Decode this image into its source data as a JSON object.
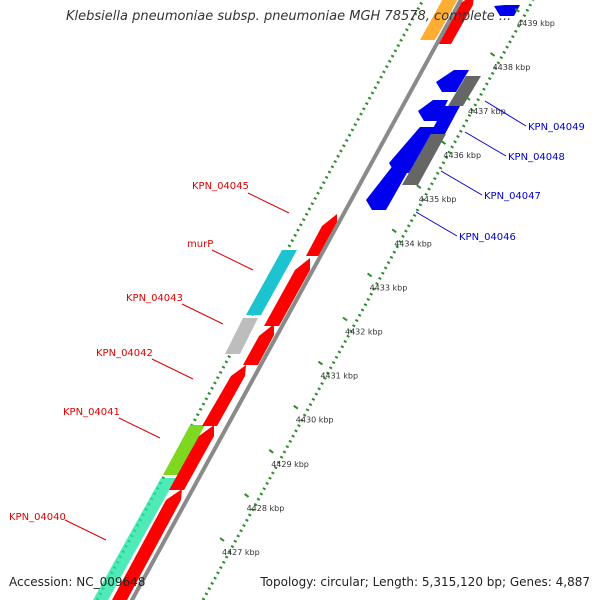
{
  "title": "Klebsiella pneumoniae subsp. pneumoniae MGH 78578, complete ...",
  "accession": "Accession: NC_009648",
  "topology": "Topology: circular; Length: 5,315,120 bp; Genes: 4,887",
  "colors": {
    "backbone": "#8a8a8a",
    "gc_dots": "#2e8b2e",
    "forward_strand_gene": "#ff0000",
    "reverse_strand_gene": "#0000ee",
    "label_left": "#dd0000",
    "label_right": "#0000cc",
    "tick_label": "#333333",
    "cyan_feature": "#1cc4cf",
    "grey_feature": "#bdbdbd",
    "green_feature": "#7fd820",
    "teal_feature": "#22e6a6",
    "dark_grey_feature": "#666666",
    "orange_feature": "#ff9900"
  },
  "scale": {
    "unit": "kbp",
    "ticks": [
      {
        "label": "4427 kbp"
      },
      {
        "label": "4428 kbp"
      },
      {
        "label": "4429 kbp"
      },
      {
        "label": "4430 kbp"
      },
      {
        "label": "4431 kbp"
      },
      {
        "label": "4432 kbp"
      },
      {
        "label": "4433 kbp"
      },
      {
        "label": "4434 kbp"
      },
      {
        "label": "4435 kbp"
      },
      {
        "label": "4436 kbp"
      },
      {
        "label": "4437 kbp"
      },
      {
        "label": "4438 kbp"
      },
      {
        "label": "4439 kbp"
      }
    ]
  },
  "gene_labels_left": [
    {
      "text": "KPN_04040"
    },
    {
      "text": "KPN_04041"
    },
    {
      "text": "KPN_04042"
    },
    {
      "text": "KPN_04043"
    },
    {
      "text": "murP"
    },
    {
      "text": "KPN_04045"
    }
  ],
  "gene_labels_right": [
    {
      "text": "KPN_04046"
    },
    {
      "text": "KPN_04047"
    },
    {
      "text": "KPN_04048"
    },
    {
      "text": "KPN_04049"
    }
  ]
}
